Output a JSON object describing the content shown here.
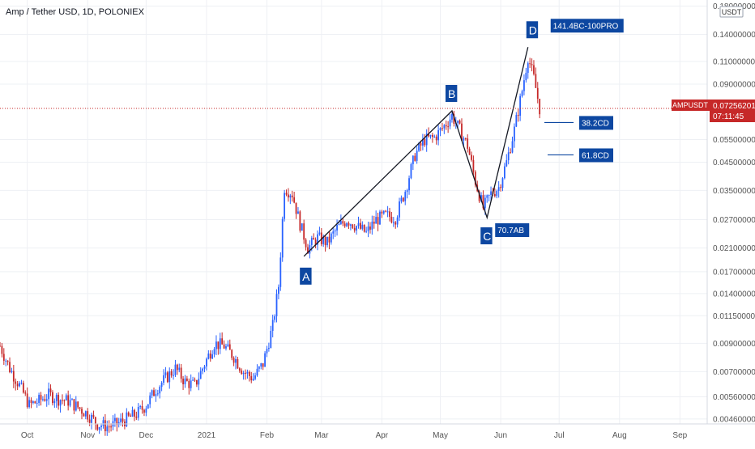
{
  "header": {
    "title": "Amp / Tether USD, 1D, POLONIEX"
  },
  "axis": {
    "currency_label": "USDT"
  },
  "price_ticks": [
    "0.18000000",
    "0.14000000",
    "0.11000000",
    "0.09000000",
    "0.05500000",
    "0.04500000",
    "0.03500000",
    "0.02700000",
    "0.02100000",
    "0.01700000",
    "0.01400000",
    "0.01150000",
    "0.00900000",
    "0.00700000",
    "0.00560000",
    "0.00460000"
  ],
  "time_ticks": [
    "Oct",
    "Nov",
    "Dec",
    "2021",
    "Feb",
    "Mar",
    "Apr",
    "May",
    "Jun",
    "Jul",
    "Aug",
    "Sep"
  ],
  "current_price": {
    "symbol": "AMPUSDT",
    "price": "0.07256201",
    "countdown": "07:11:45"
  },
  "pattern": {
    "points": [
      {
        "label": "A",
        "date": "2021-02-20",
        "price": 0.0195
      },
      {
        "label": "B",
        "date": "2021-05-07",
        "price": 0.071
      },
      {
        "label": "C",
        "date": "2021-05-25",
        "price": 0.0275
      },
      {
        "label": "D",
        "date": "2021-06-15",
        "price": 0.125
      }
    ],
    "labels": {
      "C": "70.7AB",
      "D": "141.4BC-100PRO"
    },
    "levels": [
      {
        "label": "38.2CD",
        "price": 0.064
      },
      {
        "label": "61.8CD",
        "price": 0.048
      }
    ]
  },
  "colors": {
    "up": "#2962ff",
    "down": "#c62828",
    "label_bg": "#0d47a1",
    "price_badge": "#c62828",
    "grid": "#eef0f4",
    "axis_text": "#555555"
  },
  "chart_data": {
    "type": "candlestick",
    "title": "Amp / Tether USD, 1D, POLONIEX",
    "y_scale": "log",
    "ylim": [
      0.0044,
      0.19
    ],
    "x_range": [
      "2020-09-17",
      "2021-09-15"
    ],
    "grid": true,
    "candles": [
      {
        "date": "2020-09-17",
        "close": 0.0088
      },
      {
        "date": "2020-09-22",
        "close": 0.0072
      },
      {
        "date": "2020-09-27",
        "close": 0.0062
      },
      {
        "date": "2020-10-02",
        "close": 0.0052
      },
      {
        "date": "2020-10-07",
        "close": 0.0054
      },
      {
        "date": "2020-10-12",
        "close": 0.0057
      },
      {
        "date": "2020-10-17",
        "close": 0.0055
      },
      {
        "date": "2020-10-22",
        "close": 0.0054
      },
      {
        "date": "2020-10-27",
        "close": 0.0051
      },
      {
        "date": "2020-11-01",
        "close": 0.0048
      },
      {
        "date": "2020-11-06",
        "close": 0.0044
      },
      {
        "date": "2020-11-11",
        "close": 0.0043
      },
      {
        "date": "2020-11-16",
        "close": 0.0044
      },
      {
        "date": "2020-11-21",
        "close": 0.0046
      },
      {
        "date": "2020-11-26",
        "close": 0.0048
      },
      {
        "date": "2020-12-01",
        "close": 0.0052
      },
      {
        "date": "2020-12-06",
        "close": 0.006
      },
      {
        "date": "2020-12-11",
        "close": 0.0066
      },
      {
        "date": "2020-12-16",
        "close": 0.0072
      },
      {
        "date": "2020-12-21",
        "close": 0.0064
      },
      {
        "date": "2020-12-26",
        "close": 0.0062
      },
      {
        "date": "2020-12-31",
        "close": 0.0075
      },
      {
        "date": "2021-01-05",
        "close": 0.009
      },
      {
        "date": "2021-01-10",
        "close": 0.0088
      },
      {
        "date": "2021-01-15",
        "close": 0.008
      },
      {
        "date": "2021-01-20",
        "close": 0.007
      },
      {
        "date": "2021-01-25",
        "close": 0.0066
      },
      {
        "date": "2021-01-30",
        "close": 0.0075
      },
      {
        "date": "2021-02-04",
        "close": 0.0105
      },
      {
        "date": "2021-02-07",
        "close": 0.015
      },
      {
        "date": "2021-02-10",
        "close": 0.036
      },
      {
        "date": "2021-02-14",
        "close": 0.034
      },
      {
        "date": "2021-02-18",
        "close": 0.026
      },
      {
        "date": "2021-02-22",
        "close": 0.021
      },
      {
        "date": "2021-02-27",
        "close": 0.023
      },
      {
        "date": "2021-03-04",
        "close": 0.022
      },
      {
        "date": "2021-03-09",
        "close": 0.025
      },
      {
        "date": "2021-03-14",
        "close": 0.027
      },
      {
        "date": "2021-03-19",
        "close": 0.0255
      },
      {
        "date": "2021-03-24",
        "close": 0.024
      },
      {
        "date": "2021-03-29",
        "close": 0.027
      },
      {
        "date": "2021-04-03",
        "close": 0.028
      },
      {
        "date": "2021-04-08",
        "close": 0.0275
      },
      {
        "date": "2021-04-13",
        "close": 0.035
      },
      {
        "date": "2021-04-18",
        "close": 0.048
      },
      {
        "date": "2021-04-23",
        "close": 0.055
      },
      {
        "date": "2021-04-28",
        "close": 0.056
      },
      {
        "date": "2021-05-03",
        "close": 0.062
      },
      {
        "date": "2021-05-07",
        "close": 0.068
      },
      {
        "date": "2021-05-11",
        "close": 0.06
      },
      {
        "date": "2021-05-15",
        "close": 0.052
      },
      {
        "date": "2021-05-19",
        "close": 0.038
      },
      {
        "date": "2021-05-23",
        "close": 0.03
      },
      {
        "date": "2021-05-27",
        "close": 0.034
      },
      {
        "date": "2021-05-31",
        "close": 0.036
      },
      {
        "date": "2021-06-04",
        "close": 0.045
      },
      {
        "date": "2021-06-08",
        "close": 0.06
      },
      {
        "date": "2021-06-12",
        "close": 0.085
      },
      {
        "date": "2021-06-15",
        "close": 0.115
      },
      {
        "date": "2021-06-18",
        "close": 0.095
      },
      {
        "date": "2021-06-21",
        "close": 0.0726
      }
    ]
  }
}
